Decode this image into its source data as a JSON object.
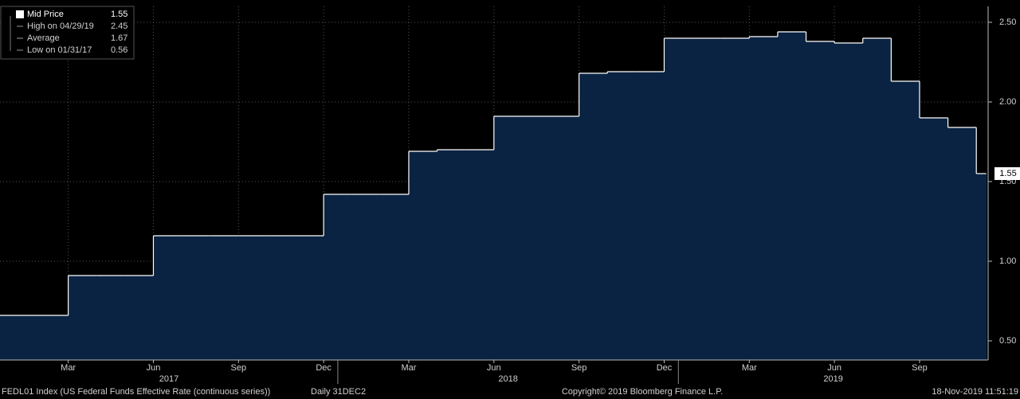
{
  "chart_data": {
    "type": "area",
    "step": true,
    "x": [
      "2016-12",
      "2017-01",
      "2017-02",
      "2017-03",
      "2017-04",
      "2017-05",
      "2017-06",
      "2017-07",
      "2017-08",
      "2017-09",
      "2017-10",
      "2017-11",
      "2017-12",
      "2018-01",
      "2018-02",
      "2018-03",
      "2018-04",
      "2018-05",
      "2018-06",
      "2018-07",
      "2018-08",
      "2018-09",
      "2018-10",
      "2018-11",
      "2018-12",
      "2019-01",
      "2019-02",
      "2019-03",
      "2019-04",
      "2019-05",
      "2019-06",
      "2019-07",
      "2019-08",
      "2019-09",
      "2019-10",
      "2019-11"
    ],
    "values": [
      0.66,
      0.66,
      0.66,
      0.91,
      0.91,
      0.91,
      1.16,
      1.16,
      1.16,
      1.16,
      1.16,
      1.16,
      1.42,
      1.42,
      1.42,
      1.69,
      1.7,
      1.7,
      1.91,
      1.91,
      1.91,
      2.18,
      2.19,
      2.19,
      2.4,
      2.4,
      2.4,
      2.41,
      2.44,
      2.38,
      2.37,
      2.4,
      2.13,
      1.9,
      1.84,
      1.55
    ],
    "color": "#ffffff",
    "fill": "#0b2342",
    "xlim": [
      "2016-12",
      "2019-12"
    ],
    "xticks": [
      {
        "value": "2017-03",
        "label": "Mar"
      },
      {
        "value": "2017-06",
        "label": "Jun"
      },
      {
        "value": "2017-09",
        "label": "Sep"
      },
      {
        "value": "2017-12",
        "label": "Dec"
      },
      {
        "value": "2018-03",
        "label": "Mar"
      },
      {
        "value": "2018-06",
        "label": "Jun"
      },
      {
        "value": "2018-09",
        "label": "Sep"
      },
      {
        "value": "2018-12",
        "label": "Dec"
      },
      {
        "value": "2019-03",
        "label": "Mar"
      },
      {
        "value": "2019-06",
        "label": "Jun"
      },
      {
        "value": "2019-09",
        "label": "Sep"
      }
    ],
    "years": [
      2017,
      2018,
      2019
    ],
    "ylim": [
      0.38,
      2.6
    ],
    "yticks": [
      {
        "value": 0.5,
        "label": "0.50"
      },
      {
        "value": 1,
        "label": "1.00"
      },
      {
        "value": 1.5,
        "label": "1.50"
      },
      {
        "value": 2,
        "label": "2.00"
      },
      {
        "value": 2.5,
        "label": "2.50"
      }
    ],
    "grid": true,
    "legend": [
      {
        "label": "Mid Price",
        "value": 1.55
      },
      {
        "label": "High on 04/29/19",
        "value": 2.45
      },
      {
        "label": "Average",
        "value": 1.67
      },
      {
        "label": "Low on 01/31/17",
        "value": 0.56
      }
    ],
    "source": "FEDL01 Index (US Federal Funds Effective Rate (continuous series))",
    "frequency": "Daily 31DEC2",
    "copyright": "Copyright© 2019 Bloomberg Finance L.P.",
    "timestamp": "18-Nov-2019 11:51:19"
  }
}
